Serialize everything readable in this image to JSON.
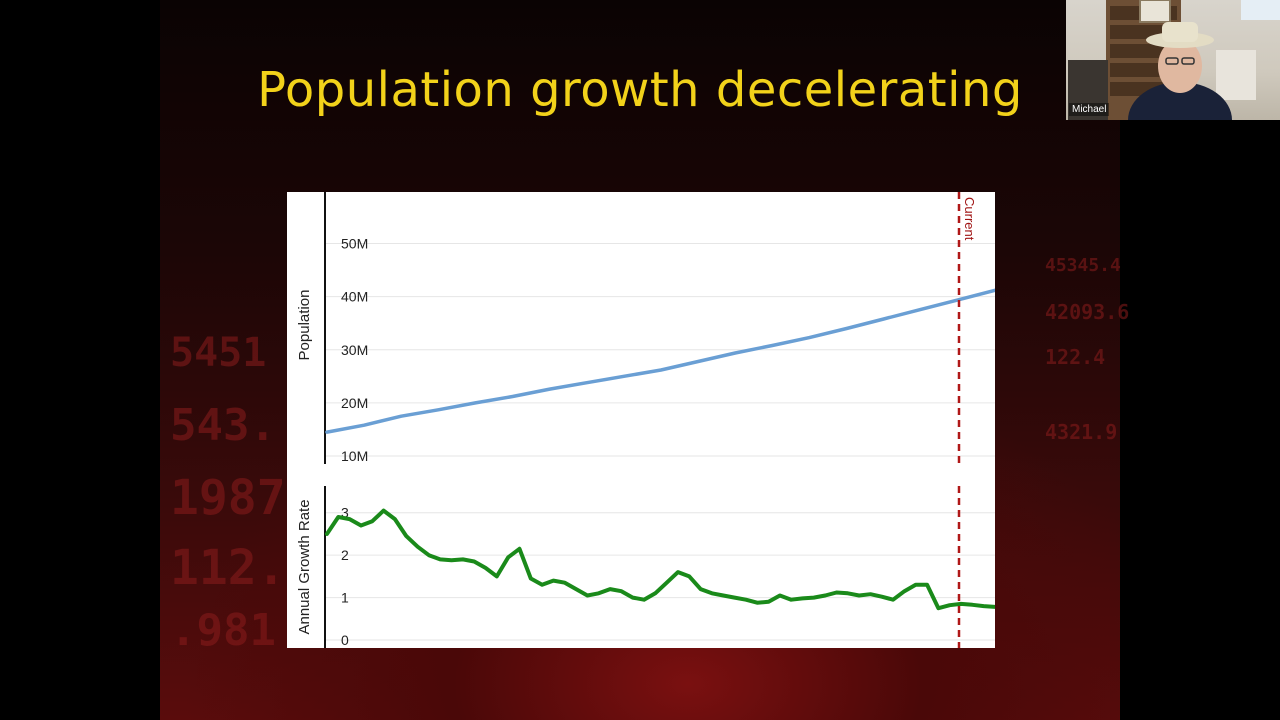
{
  "slide": {
    "title": "Population growth decelerating"
  },
  "presenter": {
    "name": "Michael"
  },
  "colors": {
    "title": "#f2d21a",
    "population_line": "#6a9fd4",
    "growth_line": "#1a8a1a",
    "current_marker": "#b01818"
  },
  "chart_data": [
    {
      "type": "line",
      "ylabel": "Population",
      "y_ticks": [
        "10M",
        "20M",
        "30M",
        "40M",
        "50M"
      ],
      "ylim": [
        10,
        55
      ],
      "series": [
        {
          "values": [
            14.5,
            15.8,
            17.5,
            18.7,
            20.0,
            21.2,
            22.6,
            23.8,
            25.0,
            26.2,
            27.8,
            29.4,
            30.8,
            32.3,
            34.0,
            35.8,
            37.6,
            39.4,
            41.2
          ]
        }
      ],
      "current_label": "Current"
    },
    {
      "type": "line",
      "ylabel": "Annual Growth Rate",
      "y_ticks": [
        "0",
        "1",
        "2",
        "3"
      ],
      "ylim": [
        0,
        3.3
      ],
      "series": [
        {
          "values": [
            2.5,
            2.9,
            2.85,
            2.7,
            2.8,
            3.05,
            2.85,
            2.45,
            2.2,
            2.0,
            1.9,
            1.88,
            1.9,
            1.85,
            1.7,
            1.5,
            1.95,
            2.15,
            1.45,
            1.3,
            1.4,
            1.35,
            1.2,
            1.05,
            1.1,
            1.2,
            1.15,
            1.0,
            0.95,
            1.1,
            1.35,
            1.6,
            1.5,
            1.2,
            1.1,
            1.05,
            1.0,
            0.95,
            0.88,
            0.9,
            1.05,
            0.95,
            0.98,
            1.0,
            1.05,
            1.12,
            1.1,
            1.05,
            1.08,
            1.02,
            0.95,
            1.15,
            1.3,
            1.3,
            0.75,
            0.82,
            0.85,
            0.83,
            0.8,
            0.78
          ]
        }
      ]
    }
  ]
}
